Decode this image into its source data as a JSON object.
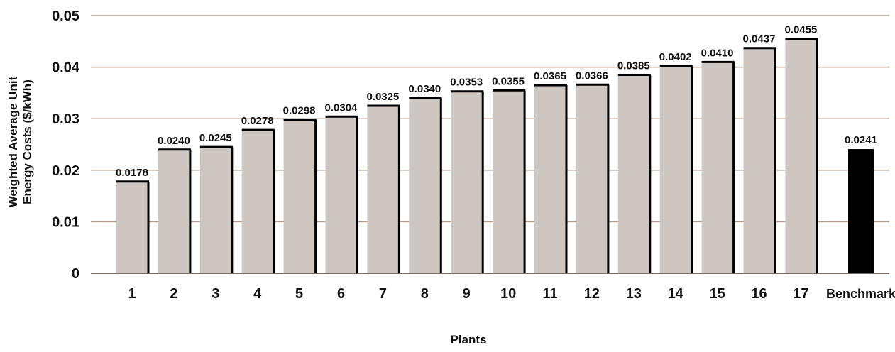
{
  "chart_data": {
    "type": "bar",
    "xlabel": "Plants",
    "ylabel_lines": [
      "Weighted Average Unit",
      "Energy Costs ($/kWh)"
    ],
    "ylim": [
      0,
      0.05
    ],
    "yticks": [
      "0",
      "0.01",
      "0.02",
      "0.03",
      "0.04",
      "0.05"
    ],
    "ytick_values": [
      0,
      0.01,
      0.02,
      0.03,
      0.04,
      0.05
    ],
    "grid": true,
    "categories": [
      "1",
      "2",
      "3",
      "4",
      "5",
      "6",
      "7",
      "8",
      "9",
      "10",
      "11",
      "12",
      "13",
      "14",
      "15",
      "16",
      "17",
      "Benchmark"
    ],
    "values": [
      0.0178,
      0.024,
      0.0245,
      0.0278,
      0.0298,
      0.0304,
      0.0325,
      0.034,
      0.0353,
      0.0355,
      0.0365,
      0.0366,
      0.0385,
      0.0402,
      0.041,
      0.0437,
      0.0455,
      0.0241
    ],
    "value_labels": [
      "0.0178",
      "0.0240",
      "0.0245",
      "0.0278",
      "0.0298",
      "0.0304",
      "0.0325",
      "0.0340",
      "0.0353",
      "0.0355",
      "0.0365",
      "0.0366",
      "0.0385",
      "0.0402",
      "0.0410",
      "0.0437",
      "0.0455",
      "0.0241"
    ],
    "colors": {
      "bar": "#cdc6c1",
      "bar_edge": "#000000",
      "benchmark": "#000000",
      "grid": "#b09a8a"
    }
  }
}
